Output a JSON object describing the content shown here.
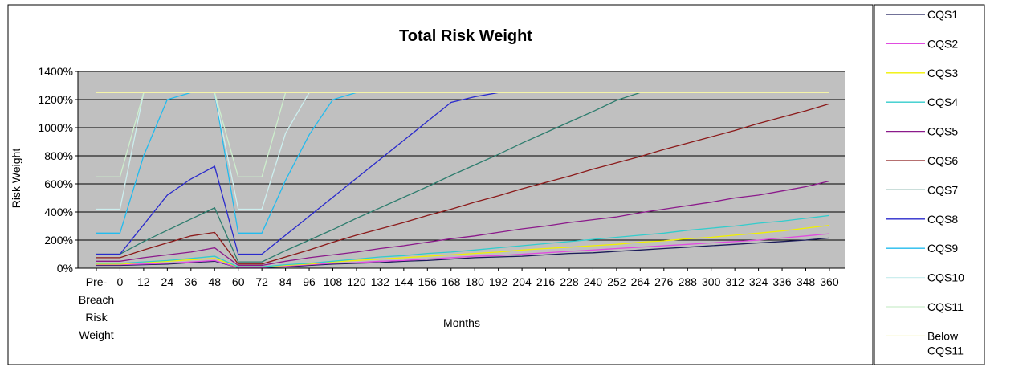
{
  "chart_data": {
    "type": "line",
    "title": "Total Risk Weight",
    "xlabel": "Months",
    "ylabel": "Risk Weight",
    "categories": [
      "Pre-Breach Risk Weight",
      "0",
      "12",
      "24",
      "36",
      "48",
      "60",
      "72",
      "84",
      "96",
      "108",
      "120",
      "132",
      "144",
      "156",
      "168",
      "180",
      "192",
      "204",
      "216",
      "228",
      "240",
      "252",
      "264",
      "276",
      "288",
      "300",
      "312",
      "324",
      "336",
      "348",
      "360"
    ],
    "ylim": [
      0,
      14
    ],
    "y_ticks": [
      "0%",
      "200%",
      "400%",
      "600%",
      "800%",
      "1000%",
      "1200%",
      "1400%"
    ],
    "grid": true,
    "legend_position": "right",
    "series": [
      {
        "name": "CQS1",
        "color": "#1c1c5a",
        "values": [
          0.2,
          0.2,
          0.25,
          0.3,
          0.4,
          0.5,
          0.05,
          0.05,
          0.1,
          0.2,
          0.3,
          0.35,
          0.4,
          0.5,
          0.55,
          0.65,
          0.75,
          0.8,
          0.85,
          0.95,
          1.05,
          1.1,
          1.2,
          1.3,
          1.4,
          1.5,
          1.6,
          1.7,
          1.8,
          1.9,
          2.0,
          2.15
        ]
      },
      {
        "name": "CQS2",
        "color": "#e04ce0",
        "values": [
          0.25,
          0.25,
          0.3,
          0.35,
          0.45,
          0.55,
          0.05,
          0.05,
          0.15,
          0.25,
          0.35,
          0.4,
          0.5,
          0.55,
          0.65,
          0.75,
          0.85,
          0.9,
          1.0,
          1.1,
          1.2,
          1.3,
          1.4,
          1.5,
          1.6,
          1.7,
          1.8,
          1.9,
          2.0,
          2.15,
          2.3,
          2.45
        ]
      },
      {
        "name": "CQS3",
        "color": "#f0f000",
        "values": [
          0.3,
          0.3,
          0.4,
          0.5,
          0.6,
          0.7,
          0.1,
          0.1,
          0.2,
          0.3,
          0.45,
          0.55,
          0.65,
          0.75,
          0.85,
          0.95,
          1.05,
          1.15,
          1.3,
          1.4,
          1.5,
          1.6,
          1.7,
          1.85,
          1.95,
          2.1,
          2.2,
          2.35,
          2.5,
          2.65,
          2.85,
          3.05
        ]
      },
      {
        "name": "CQS4",
        "color": "#33cccc",
        "values": [
          0.35,
          0.35,
          0.45,
          0.55,
          0.7,
          0.85,
          0.1,
          0.1,
          0.25,
          0.35,
          0.5,
          0.65,
          0.8,
          0.9,
          1.05,
          1.15,
          1.3,
          1.45,
          1.6,
          1.75,
          1.9,
          2.05,
          2.2,
          2.35,
          2.5,
          2.7,
          2.85,
          3.0,
          3.2,
          3.35,
          3.55,
          3.75
        ]
      },
      {
        "name": "CQS5",
        "color": "#8b1a8b",
        "values": [
          0.5,
          0.5,
          0.75,
          0.95,
          1.15,
          1.45,
          0.2,
          0.2,
          0.5,
          0.75,
          0.95,
          1.15,
          1.4,
          1.6,
          1.85,
          2.1,
          2.3,
          2.55,
          2.8,
          3.0,
          3.25,
          3.45,
          3.65,
          3.95,
          4.2,
          4.45,
          4.7,
          5.0,
          5.2,
          5.5,
          5.8,
          6.2
        ]
      },
      {
        "name": "CQS6",
        "color": "#8b1a1a",
        "values": [
          0.75,
          0.75,
          1.3,
          1.8,
          2.3,
          2.55,
          0.3,
          0.3,
          0.8,
          1.3,
          1.85,
          2.35,
          2.8,
          3.25,
          3.75,
          4.2,
          4.7,
          5.15,
          5.65,
          6.1,
          6.55,
          7.05,
          7.5,
          7.95,
          8.45,
          8.9,
          9.35,
          9.8,
          10.3,
          10.75,
          11.2,
          11.7
        ]
      },
      {
        "name": "CQS7",
        "color": "#2e7d6e",
        "values": [
          1.0,
          1.0,
          1.9,
          2.7,
          3.5,
          4.3,
          0.45,
          0.45,
          1.25,
          2.0,
          2.75,
          3.55,
          4.3,
          5.05,
          5.8,
          6.6,
          7.35,
          8.1,
          8.9,
          9.65,
          10.4,
          11.15,
          11.95,
          12.5,
          12.5,
          12.5,
          12.5,
          12.5,
          12.5,
          12.5,
          12.5,
          12.5
        ]
      },
      {
        "name": "CQS8",
        "color": "#2a2acc",
        "values": [
          1.0,
          1.0,
          3.1,
          5.2,
          6.35,
          7.25,
          1.0,
          1.0,
          2.35,
          3.7,
          5.05,
          6.4,
          7.75,
          9.1,
          10.45,
          11.8,
          12.2,
          12.5,
          12.5,
          12.5,
          12.5,
          12.5,
          12.5,
          12.5,
          12.5,
          12.5,
          12.5,
          12.5,
          12.5,
          12.5,
          12.5,
          12.5
        ]
      },
      {
        "name": "CQS9",
        "color": "#22bbee",
        "values": [
          2.5,
          2.5,
          8.0,
          12.0,
          12.5,
          12.5,
          2.5,
          2.5,
          6.25,
          9.5,
          12.0,
          12.5,
          12.5,
          12.5,
          12.5,
          12.5,
          12.5,
          12.5,
          12.5,
          12.5,
          12.5,
          12.5,
          12.5,
          12.5,
          12.5,
          12.5,
          12.5,
          12.5,
          12.5,
          12.5,
          12.5,
          12.5
        ]
      },
      {
        "name": "CQS10",
        "color": "#cceeee",
        "values": [
          4.2,
          4.2,
          12.5,
          12.5,
          12.5,
          12.5,
          4.2,
          4.2,
          9.6,
          12.5,
          12.5,
          12.5,
          12.5,
          12.5,
          12.5,
          12.5,
          12.5,
          12.5,
          12.5,
          12.5,
          12.5,
          12.5,
          12.5,
          12.5,
          12.5,
          12.5,
          12.5,
          12.5,
          12.5,
          12.5,
          12.5,
          12.5
        ]
      },
      {
        "name": "CQS11",
        "color": "#cceecc",
        "values": [
          6.5,
          6.5,
          12.5,
          12.5,
          12.5,
          12.5,
          6.5,
          6.5,
          12.5,
          12.5,
          12.5,
          12.5,
          12.5,
          12.5,
          12.5,
          12.5,
          12.5,
          12.5,
          12.5,
          12.5,
          12.5,
          12.5,
          12.5,
          12.5,
          12.5,
          12.5,
          12.5,
          12.5,
          12.5,
          12.5,
          12.5,
          12.5
        ]
      },
      {
        "name": "Below CQS11",
        "color": "#f4f4a8",
        "values": [
          12.5,
          12.5,
          12.5,
          12.5,
          12.5,
          12.5,
          12.5,
          12.5,
          12.5,
          12.5,
          12.5,
          12.5,
          12.5,
          12.5,
          12.5,
          12.5,
          12.5,
          12.5,
          12.5,
          12.5,
          12.5,
          12.5,
          12.5,
          12.5,
          12.5,
          12.5,
          12.5,
          12.5,
          12.5,
          12.5,
          12.5,
          12.5
        ]
      }
    ]
  }
}
